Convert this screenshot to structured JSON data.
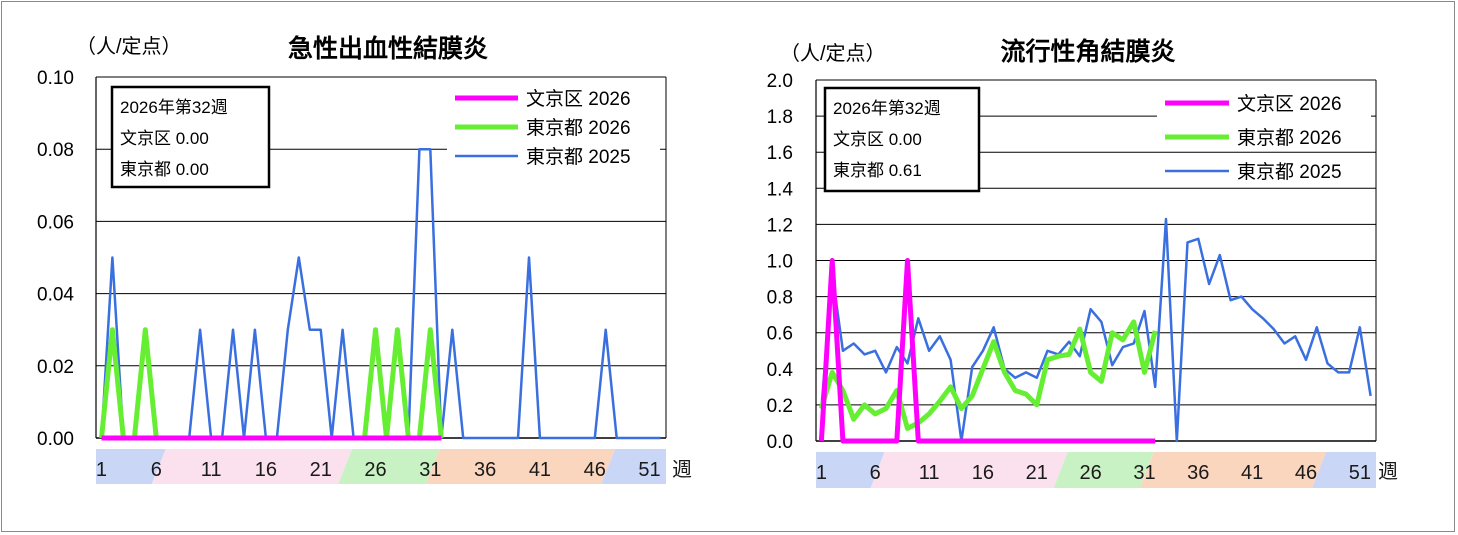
{
  "chart_data": [
    {
      "type": "line",
      "title": "急性出血性結膜炎",
      "ylabel": "（人/定点）",
      "xlabel": "週",
      "ylim": [
        0,
        0.1
      ],
      "yticks": [
        "0.00",
        "0.02",
        "0.04",
        "0.06",
        "0.08",
        "0.10"
      ],
      "xticks": [
        "1",
        "6",
        "11",
        "16",
        "21",
        "26",
        "31",
        "36",
        "41",
        "46",
        "51"
      ],
      "infobox": [
        "2026年第32週",
        "文京区  0.00",
        "東京都  0.00"
      ],
      "series": [
        {
          "name": "文京区 2026",
          "color": "#ff00ff",
          "values": [
            0,
            0,
            0,
            0,
            0,
            0,
            0,
            0,
            0,
            0,
            0,
            0,
            0,
            0,
            0,
            0,
            0,
            0,
            0,
            0,
            0,
            0,
            0,
            0,
            0,
            0,
            0,
            0,
            0,
            0,
            0,
            0
          ]
        },
        {
          "name": "東京都 2026",
          "color": "#66ee33",
          "values": [
            0,
            0.03,
            0,
            0,
            0.03,
            0,
            0,
            0,
            0,
            0,
            0,
            0,
            0,
            0,
            0,
            0,
            0,
            0,
            0,
            0,
            0,
            0,
            0,
            0,
            0,
            0.03,
            0,
            0.03,
            0,
            0,
            0.03,
            0
          ]
        },
        {
          "name": "東京都 2025",
          "color": "#3a6fe0",
          "values": [
            0,
            0.05,
            0,
            0,
            0.03,
            0,
            0,
            0,
            0,
            0.03,
            0,
            0,
            0.03,
            0,
            0.03,
            0,
            0,
            0.03,
            0.05,
            0.03,
            0.03,
            0,
            0.03,
            0,
            0,
            0,
            0,
            0,
            0,
            0.08,
            0.08,
            0,
            0.03,
            0,
            0,
            0,
            0,
            0,
            0,
            0.05,
            0,
            0,
            0,
            0,
            0,
            0,
            0.03,
            0,
            0,
            0,
            0,
            0
          ]
        }
      ],
      "week_bands": [
        {
          "from": 1,
          "to": 7,
          "color": "#c9d6f5"
        },
        {
          "from": 7,
          "to": 24,
          "color": "#fbe1ee"
        },
        {
          "from": 24,
          "to": 32,
          "color": "#c9f2c4"
        },
        {
          "from": 32,
          "to": 48,
          "color": "#fbd6bf"
        },
        {
          "from": 48,
          "to": 53,
          "color": "#c9d6f5"
        }
      ]
    },
    {
      "type": "line",
      "title": "流行性角結膜炎",
      "ylabel": "（人/定点）",
      "xlabel": "週",
      "ylim": [
        0,
        2.0
      ],
      "yticks": [
        "0.0",
        "0.2",
        "0.4",
        "0.6",
        "0.8",
        "1.0",
        "1.2",
        "1.4",
        "1.6",
        "1.8",
        "2.0"
      ],
      "xticks": [
        "1",
        "6",
        "11",
        "16",
        "21",
        "26",
        "31",
        "36",
        "41",
        "46",
        "51"
      ],
      "infobox": [
        "2026年第32週",
        "文京区  0.00",
        "東京都  0.61"
      ],
      "series": [
        {
          "name": "文京区 2026",
          "color": "#ff00ff",
          "values": [
            0,
            1.0,
            0,
            0,
            0,
            0,
            0,
            0,
            1.0,
            0,
            0,
            0,
            0,
            0,
            0,
            0,
            0,
            0,
            0,
            0,
            0,
            0,
            0,
            0,
            0,
            0,
            0,
            0,
            0,
            0,
            0,
            0
          ]
        },
        {
          "name": "東京都 2026",
          "color": "#66ee33",
          "values": [
            0.18,
            0.38,
            0.28,
            0.12,
            0.2,
            0.15,
            0.18,
            0.28,
            0.07,
            0.1,
            0.15,
            0.22,
            0.3,
            0.18,
            0.25,
            0.4,
            0.55,
            0.38,
            0.28,
            0.26,
            0.2,
            0.45,
            0.47,
            0.48,
            0.62,
            0.38,
            0.33,
            0.6,
            0.56,
            0.66,
            0.38,
            0.61
          ]
        },
        {
          "name": "東京都 2025",
          "color": "#3a6fe0",
          "values": [
            0.18,
            0.93,
            0.5,
            0.54,
            0.48,
            0.5,
            0.38,
            0.52,
            0.43,
            0.68,
            0.5,
            0.58,
            0.45,
            0.0,
            0.41,
            0.5,
            0.63,
            0.4,
            0.35,
            0.38,
            0.35,
            0.5,
            0.48,
            0.55,
            0.47,
            0.73,
            0.66,
            0.42,
            0.52,
            0.54,
            0.72,
            0.3,
            1.23,
            0.0,
            1.1,
            1.12,
            0.87,
            1.03,
            0.78,
            0.8,
            0.73,
            0.68,
            0.62,
            0.54,
            0.58,
            0.45,
            0.63,
            0.43,
            0.38,
            0.38,
            0.63,
            0.25
          ]
        }
      ],
      "week_bands": [
        {
          "from": 1,
          "to": 7,
          "color": "#c9d6f5"
        },
        {
          "from": 7,
          "to": 24,
          "color": "#fbe1ee"
        },
        {
          "from": 24,
          "to": 32,
          "color": "#c9f2c4"
        },
        {
          "from": 32,
          "to": 48,
          "color": "#fbd6bf"
        },
        {
          "from": 48,
          "to": 53,
          "color": "#c9d6f5"
        }
      ]
    }
  ]
}
